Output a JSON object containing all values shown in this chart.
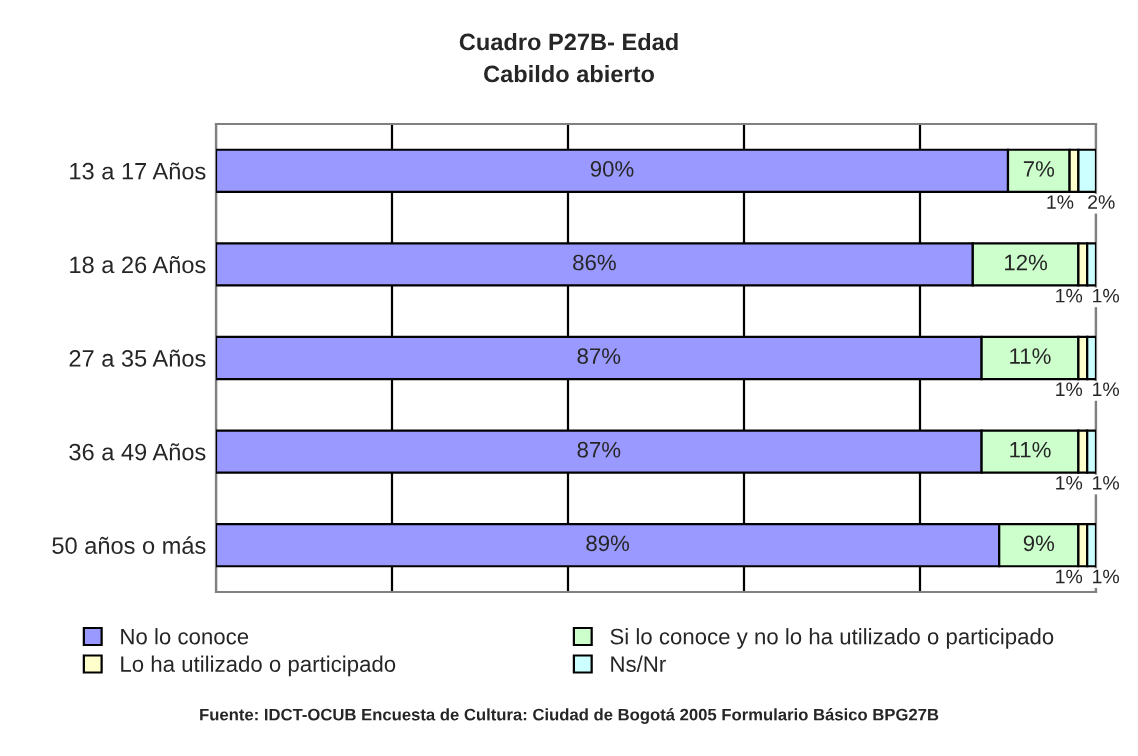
{
  "chart_data": {
    "type": "bar",
    "orientation": "horizontal",
    "stacked": true,
    "title": "Cuadro P27B- Edad",
    "subtitle": "Cabildo abierto",
    "categories": [
      "13 a 17 Años",
      "18 a 26 Años",
      "27 a 35 Años",
      "36 a 49 Años",
      "50 años o más"
    ],
    "series": [
      {
        "name": "No lo conoce",
        "color": "#9999ff",
        "values": [
          90,
          86,
          87,
          87,
          89
        ],
        "value_labels": [
          "90%",
          "86%",
          "87%",
          "87%",
          "89%"
        ]
      },
      {
        "name": "Si lo conoce y no lo ha utilizado o participado",
        "color": "#ccffcc",
        "values": [
          7,
          12,
          11,
          11,
          9
        ],
        "value_labels": [
          "7%",
          "12%",
          "11%",
          "11%",
          "9%"
        ]
      },
      {
        "name": "Lo ha utilizado o participado",
        "color": "#ffffcc",
        "values": [
          1,
          1,
          1,
          1,
          1
        ],
        "value_labels": [
          "1%",
          "1%",
          "1%",
          "1%",
          "1%"
        ]
      },
      {
        "name": "Ns/Nr",
        "color": "#ccffff",
        "values": [
          2,
          1,
          1,
          1,
          1
        ],
        "value_labels": [
          "2%",
          "1%",
          "1%",
          "1%",
          "1%"
        ]
      }
    ],
    "tick_labels": "y",
    "grid": "x",
    "legend": "bottom",
    "annotations": [
      "Fuente: IDCT-OCUB Encuesta de Cultura: Ciudad de Bogotá 2005 Formulario Básico BPG27B"
    ]
  }
}
